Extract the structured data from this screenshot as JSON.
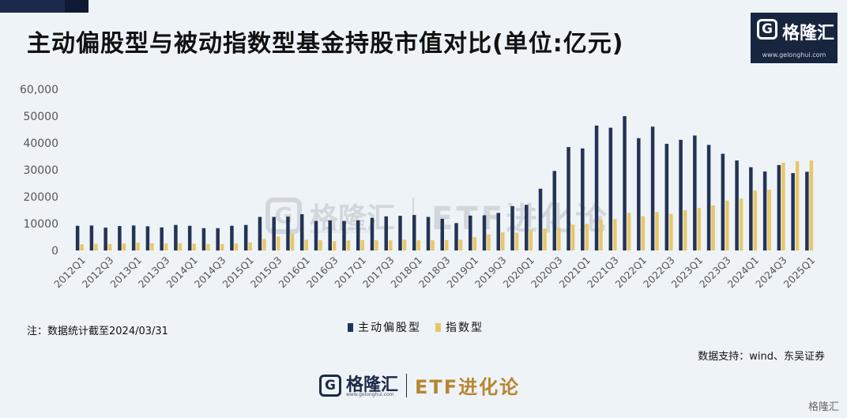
{
  "header": {
    "title": "主动偏股型与被动指数型基金持股市值对比(单位:亿元)"
  },
  "brand": {
    "mark": "G",
    "name": "格隆汇",
    "url": "www.gelonghui.com",
    "column": "ETF进化论",
    "corner": "格隆汇"
  },
  "note": "注：数据统计截至2024/03/31",
  "source": "数据支持：wind、东吴证券",
  "colors": {
    "active": "#243355",
    "passive": "#e8c767",
    "axis_text": "#555555",
    "brand_gold": "#b8862f"
  },
  "chart_data": {
    "type": "bar",
    "title": "主动偏股型与被动指数型基金持股市值对比(单位:亿元)",
    "xlabel": "",
    "ylabel": "",
    "ylim": [
      0,
      60000
    ],
    "yticks": [
      "0",
      "10000",
      "20000",
      "30000",
      "40000",
      "50000",
      "60,000"
    ],
    "legend": [
      "主动偏股型",
      "指数型"
    ],
    "legend_position": "bottom-center",
    "categories": [
      "2012Q1",
      "2012Q2",
      "2012Q3",
      "2012Q4",
      "2013Q1",
      "2013Q2",
      "2013Q3",
      "2013Q4",
      "2014Q1",
      "2014Q2",
      "2014Q3",
      "2014Q4",
      "2015Q1",
      "2015Q2",
      "2015Q3",
      "2015Q4",
      "2016Q1",
      "2016Q2",
      "2016Q3",
      "2016Q4",
      "2017Q1",
      "2017Q2",
      "2017Q3",
      "2017Q4",
      "2018Q1",
      "2018Q2",
      "2018Q3",
      "2018Q4",
      "2019Q1",
      "2019Q2",
      "2019Q3",
      "2019Q4",
      "2020Q1",
      "2020Q2",
      "2020Q3",
      "2020Q4",
      "2021Q1",
      "2021Q2",
      "2021Q3",
      "2021Q4",
      "2022Q1",
      "2022Q2",
      "2022Q3",
      "2022Q4",
      "2023Q1",
      "2023Q2",
      "2023Q3",
      "2023Q4",
      "2024Q1",
      "2024Q2",
      "2024Q3",
      "2024Q4",
      "2025Q1"
    ],
    "tick_labels": [
      "2012Q1",
      "2012Q3",
      "2013Q1",
      "2013Q3",
      "2014Q1",
      "2014Q3",
      "2015Q1",
      "2015Q3",
      "2016Q1",
      "2016Q3",
      "2017Q1",
      "2017Q3",
      "2018Q1",
      "2018Q3",
      "2019Q1",
      "2019Q3",
      "2020Q1",
      "2020Q3",
      "2021Q1",
      "2021Q3",
      "2022Q1",
      "2022Q3",
      "2023Q1",
      "2023Q3",
      "2024Q1",
      "2024Q3",
      "2025Q1"
    ],
    "series": [
      {
        "name": "主动偏股型",
        "values": [
          9200,
          9300,
          8500,
          9100,
          9300,
          9000,
          8600,
          9500,
          9200,
          8300,
          8300,
          9200,
          9500,
          12500,
          12500,
          12600,
          13500,
          11000,
          11200,
          11000,
          11200,
          12200,
          12700,
          12900,
          13200,
          12500,
          11800,
          10200,
          13000,
          13100,
          14000,
          16500,
          17000,
          23000,
          29600,
          38500,
          38000,
          46500,
          45700,
          50000,
          41800,
          46100,
          39700,
          41200,
          42800,
          39300,
          36000,
          33500,
          31000,
          29400,
          31800,
          28800,
          29300
        ]
      },
      {
        "name": "指数型",
        "values": [
          2300,
          2500,
          2400,
          2600,
          2900,
          2700,
          2600,
          2700,
          2500,
          2400,
          2400,
          2600,
          3000,
          4300,
          5200,
          6300,
          4000,
          3800,
          3500,
          3700,
          3900,
          3800,
          3800,
          4000,
          3800,
          3800,
          3900,
          4000,
          5000,
          6000,
          6800,
          6600,
          7600,
          8200,
          8400,
          9600,
          9800,
          11600,
          11700,
          14000,
          12800,
          14300,
          13600,
          15000,
          15800,
          16800,
          18600,
          19300,
          22300,
          22600,
          32700,
          33200,
          33500
        ]
      }
    ]
  }
}
